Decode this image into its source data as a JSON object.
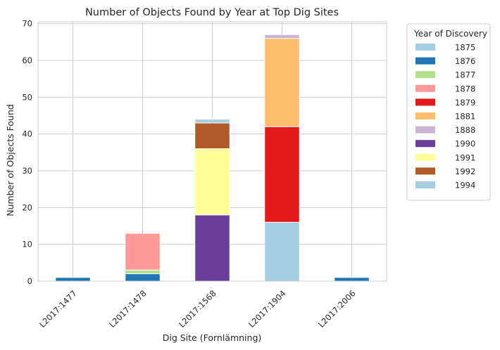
{
  "chart_data": {
    "type": "bar",
    "stacked": true,
    "title": "Number of Objects Found by Year at Top Dig Sites",
    "xlabel": "Dig Site (Fornlämning)",
    "ylabel": "Number of Objects Found",
    "ylim": [
      0,
      70.5
    ],
    "yticks": [
      0,
      10,
      20,
      30,
      40,
      50,
      60,
      70
    ],
    "grid": true,
    "legend_title": "Year of Discovery",
    "legend_position": "outside-right",
    "categories": [
      "L2017:1477",
      "L2017:1478",
      "L2017:1568",
      "L2017:1904",
      "L2017:2006"
    ],
    "series": [
      {
        "name": "1875",
        "color": "#a6cee3",
        "values": [
          0,
          0,
          0,
          16,
          0
        ]
      },
      {
        "name": "1876",
        "color": "#1f78b4",
        "values": [
          1,
          2,
          0,
          0,
          1
        ]
      },
      {
        "name": "1877",
        "color": "#b2df8a",
        "values": [
          0,
          1,
          0,
          0,
          0
        ]
      },
      {
        "name": "1878",
        "color": "#fb9a99",
        "values": [
          0,
          10,
          0,
          0,
          0
        ]
      },
      {
        "name": "1879",
        "color": "#e31a1c",
        "values": [
          0,
          0,
          0,
          26,
          0
        ]
      },
      {
        "name": "1881",
        "color": "#fdbf6f",
        "values": [
          0,
          0,
          0,
          24,
          0
        ]
      },
      {
        "name": "1888",
        "color": "#cab2d6",
        "values": [
          0,
          0,
          0,
          1,
          0
        ]
      },
      {
        "name": "1990",
        "color": "#6a3d9a",
        "values": [
          0,
          0,
          18,
          0,
          0
        ]
      },
      {
        "name": "1991",
        "color": "#ffff99",
        "values": [
          0,
          0,
          18,
          0,
          0
        ]
      },
      {
        "name": "1992",
        "color": "#b15928",
        "values": [
          0,
          0,
          7,
          0,
          0
        ]
      },
      {
        "name": "1994",
        "color": "#a6cee3",
        "values": [
          0,
          0,
          1,
          0,
          0
        ]
      }
    ]
  }
}
